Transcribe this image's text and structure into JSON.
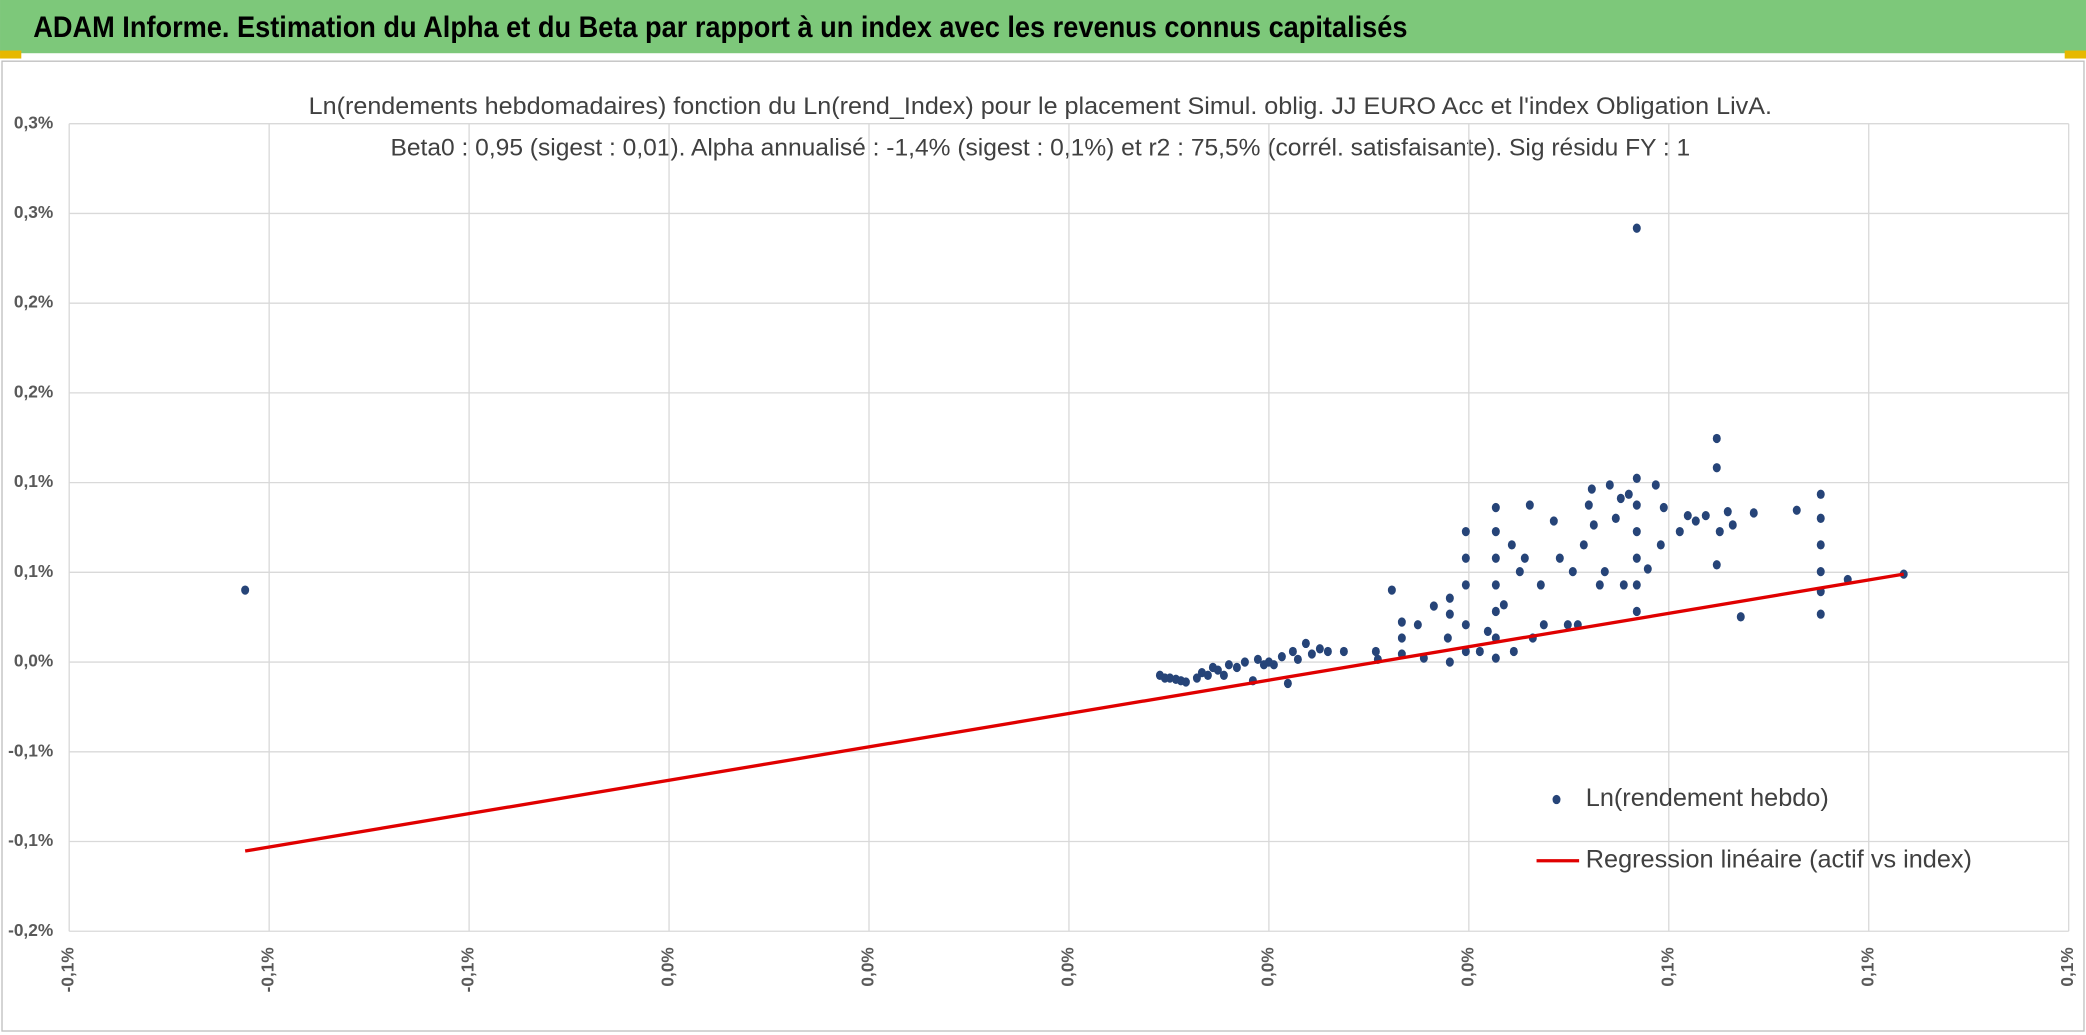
{
  "header": {
    "title": "ADAM Informe. Estimation du Alpha et du Beta par rapport à un index avec les revenus connus capitalisés"
  },
  "chart_data": {
    "type": "scatter",
    "title": "Ln(rendements hebdomadaires) fonction du Ln(rend_Index) pour le placement Simul. oblig. JJ EURO Acc et l'index Obligation LivA.",
    "subtitle": "Beta0 : 0,95 (sigest : 0,01). Alpha annualisé : -1,4% (sigest : 0,1%) et r2 : 75,5% (corrél. satisfaisante). Sig résidu FY : 1",
    "xlim": [
      -0.1,
      0.1
    ],
    "xticks": [
      {
        "value": -0.1,
        "label": "-0,1%"
      },
      {
        "value": -0.08,
        "label": "-0,1%"
      },
      {
        "value": -0.06,
        "label": "-0,1%"
      },
      {
        "value": -0.04,
        "label": "0,0%"
      },
      {
        "value": -0.02,
        "label": "0,0%"
      },
      {
        "value": 0,
        "label": "0,0%"
      },
      {
        "value": 0.02,
        "label": "0,0%"
      },
      {
        "value": 0.04,
        "label": "0,0%"
      },
      {
        "value": 0.06,
        "label": "0,1%"
      },
      {
        "value": 0.08,
        "label": "0,1%"
      },
      {
        "value": 0.1,
        "label": "0,1%"
      }
    ],
    "ylim": [
      -0.15,
      0.3
    ],
    "yticks": [
      {
        "value": -0.15,
        "label": "-0,2%"
      },
      {
        "value": -0.1,
        "label": "-0,1%"
      },
      {
        "value": -0.05,
        "label": "-0,1%"
      },
      {
        "value": 0,
        "label": "0,0%"
      },
      {
        "value": 0.05,
        "label": "0,1%"
      },
      {
        "value": 0.1,
        "label": "0,1%"
      },
      {
        "value": 0.15,
        "label": "0,2%"
      },
      {
        "value": 0.2,
        "label": "0,2%"
      },
      {
        "value": 0.25,
        "label": "0,3%"
      },
      {
        "value": 0.3,
        "label": "0,3%"
      }
    ],
    "grid": true,
    "legend": "lower right",
    "series": [
      {
        "name": "Ln(rendement hebdo)",
        "type": "scatter",
        "color": "#264478",
        "x": [
          -0.0824,
          0.0091,
          0.0096,
          0.0101,
          0.0107,
          0.0112,
          0.0117,
          0.0128,
          0.0133,
          0.0139,
          0.0144,
          0.0149,
          0.0155,
          0.016,
          0.0168,
          0.0176,
          0.0184,
          0.0189,
          0.0195,
          0.02,
          0.0205,
          0.0213,
          0.0219,
          0.0224,
          0.0229,
          0.0237,
          0.0243,
          0.0251,
          0.0259,
          0.0275,
          0.0307,
          0.0323,
          0.0309,
          0.0333,
          0.0333,
          0.0333,
          0.0349,
          0.0355,
          0.0365,
          0.0379,
          0.0381,
          0.0381,
          0.0381,
          0.0397,
          0.0397,
          0.0397,
          0.0397,
          0.0397,
          0.0411,
          0.0419,
          0.0427,
          0.0427,
          0.0427,
          0.0427,
          0.0427,
          0.0427,
          0.0427,
          0.0435,
          0.0443,
          0.0445,
          0.0451,
          0.0456,
          0.0461,
          0.0464,
          0.0472,
          0.0475,
          0.0485,
          0.0491,
          0.0499,
          0.0504,
          0.0509,
          0.0515,
          0.052,
          0.0523,
          0.0525,
          0.0531,
          0.0536,
          0.0541,
          0.0547,
          0.0552,
          0.0555,
          0.056,
          0.0568,
          0.0568,
          0.0568,
          0.0568,
          0.0568,
          0.0568,
          0.0568,
          0.0579,
          0.0587,
          0.0592,
          0.0595,
          0.0611,
          0.0619,
          0.0627,
          0.0637,
          0.0648,
          0.0648,
          0.0648,
          0.0651,
          0.0659,
          0.0664,
          0.0672,
          0.0685,
          0.0728,
          0.0752,
          0.0752,
          0.0752,
          0.0752,
          0.0752,
          0.0752,
          0.0779,
          0.0835
        ],
        "values": [
          0.0401,
          -0.0074,
          -0.0089,
          -0.0089,
          -0.0096,
          -0.0104,
          -0.0111,
          -0.0089,
          -0.0059,
          -0.0074,
          -0.003,
          -0.0045,
          -0.0074,
          -0.0015,
          -0.003,
          0,
          -0.0104,
          0.0015,
          -0.0015,
          0,
          -0.0015,
          0.003,
          -0.0119,
          0.0059,
          0.0015,
          0.0104,
          0.0045,
          0.0074,
          0.0059,
          0.0059,
          0.0059,
          0.0401,
          0.0015,
          0.0223,
          0.0134,
          0.0045,
          0.0208,
          0.0022,
          0.0312,
          0.0134,
          0.0267,
          0.0356,
          0,
          0.0727,
          0.0579,
          0.043,
          0.0208,
          0.0059,
          0.0059,
          0.0171,
          0.0861,
          0.0727,
          0.0579,
          0.043,
          0.0282,
          0.0134,
          0.0022,
          0.0319,
          0.0653,
          0.0059,
          0.0504,
          0.0579,
          0.0875,
          0.0134,
          0.043,
          0.0208,
          0.0786,
          0.0579,
          0.0208,
          0.0504,
          0.0208,
          0.0653,
          0.0875,
          0.0964,
          0.0764,
          0.043,
          0.0504,
          0.0987,
          0.0801,
          0.0912,
          0.043,
          0.0935,
          0.1024,
          0.0875,
          0.0727,
          0.0579,
          0.043,
          0.0282,
          0.2418,
          0.0519,
          0.0987,
          0.0653,
          0.0861,
          0.0727,
          0.0816,
          0.0786,
          0.0816,
          0.1246,
          0.1083,
          0.0542,
          0.0727,
          0.0838,
          0.0764,
          0.0252,
          0.0831,
          0.0846,
          0.0935,
          0.0801,
          0.0653,
          0.0504,
          0.0393,
          0.0267,
          0.046,
          0.049
        ]
      },
      {
        "name": "Regression linéaire (actif vs index)",
        "type": "line",
        "color": "#e00000",
        "x": [
          -0.0824,
          0.0835
        ],
        "values": [
          -0.1053,
          0.049
        ]
      }
    ]
  }
}
